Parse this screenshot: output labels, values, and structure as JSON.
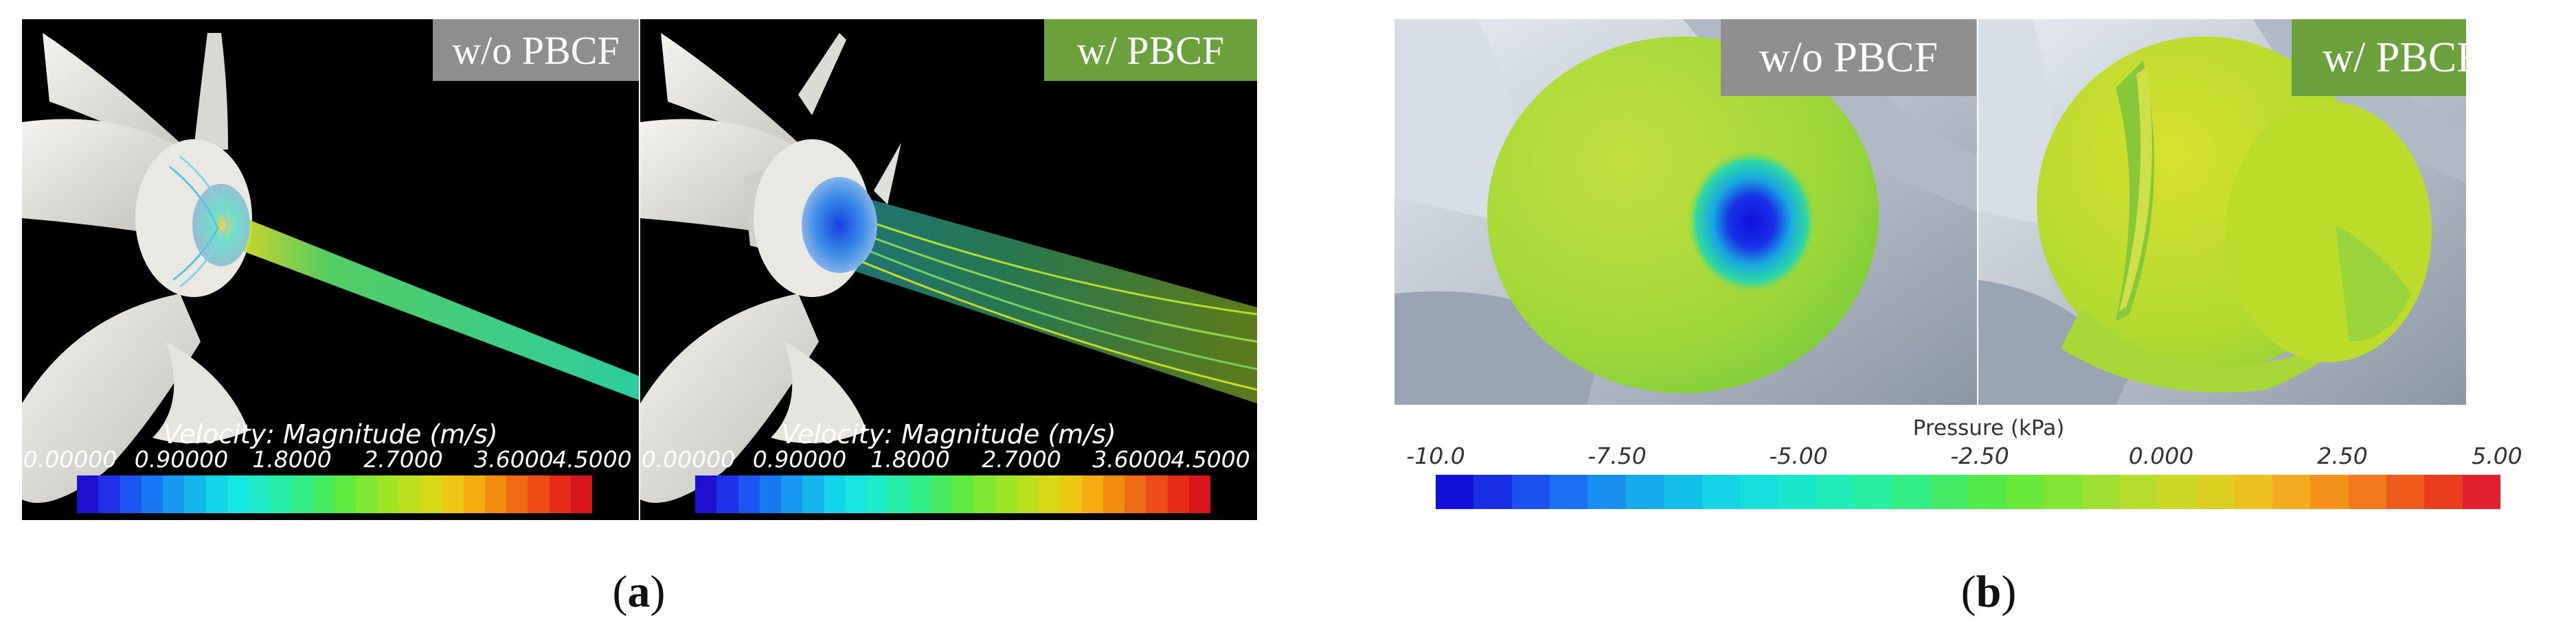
{
  "panel_a": {
    "left": {
      "tag": "w/o PBCF",
      "colorbar_title": "Velocity: Magnitude (m/s)",
      "ticks": [
        "0.00000",
        "0.90000",
        "1.8000",
        "2.7000",
        "3.6000",
        "4.5000"
      ]
    },
    "right": {
      "tag": "w/ PBCF",
      "colorbar_title": "Velocity: Magnitude (m/s)",
      "ticks": [
        "0.00000",
        "0.90000",
        "1.8000",
        "2.7000",
        "3.6000",
        "4.5000"
      ]
    },
    "caption_letter": "a"
  },
  "panel_b": {
    "left_tag": "w/o PBCF",
    "right_tag": "w/ PBCF",
    "colorbar_title": "Pressure (kPa)",
    "ticks": [
      "-10.0",
      "-7.50",
      "-5.00",
      "-2.50",
      "0.000",
      "2.50",
      "5.00"
    ],
    "caption_letter": "b"
  },
  "colors": {
    "tag_gray": "#8e8e8e",
    "tag_green": "#6aa13c",
    "sim_background": "#000000"
  }
}
